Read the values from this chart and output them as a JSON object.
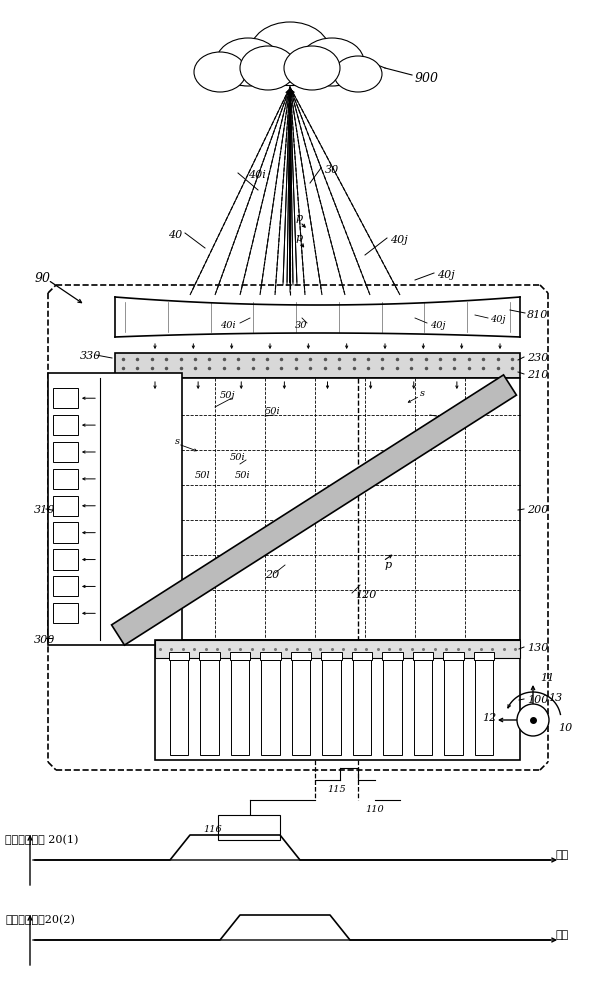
{
  "bg_color": "#ffffff",
  "lc": "#000000",
  "timing_label1": "偏振照射光束 20(1)",
  "timing_label2": "偏振照射光束20(2)",
  "time_label": "时间",
  "fig_w": 5.96,
  "fig_h": 10.0
}
